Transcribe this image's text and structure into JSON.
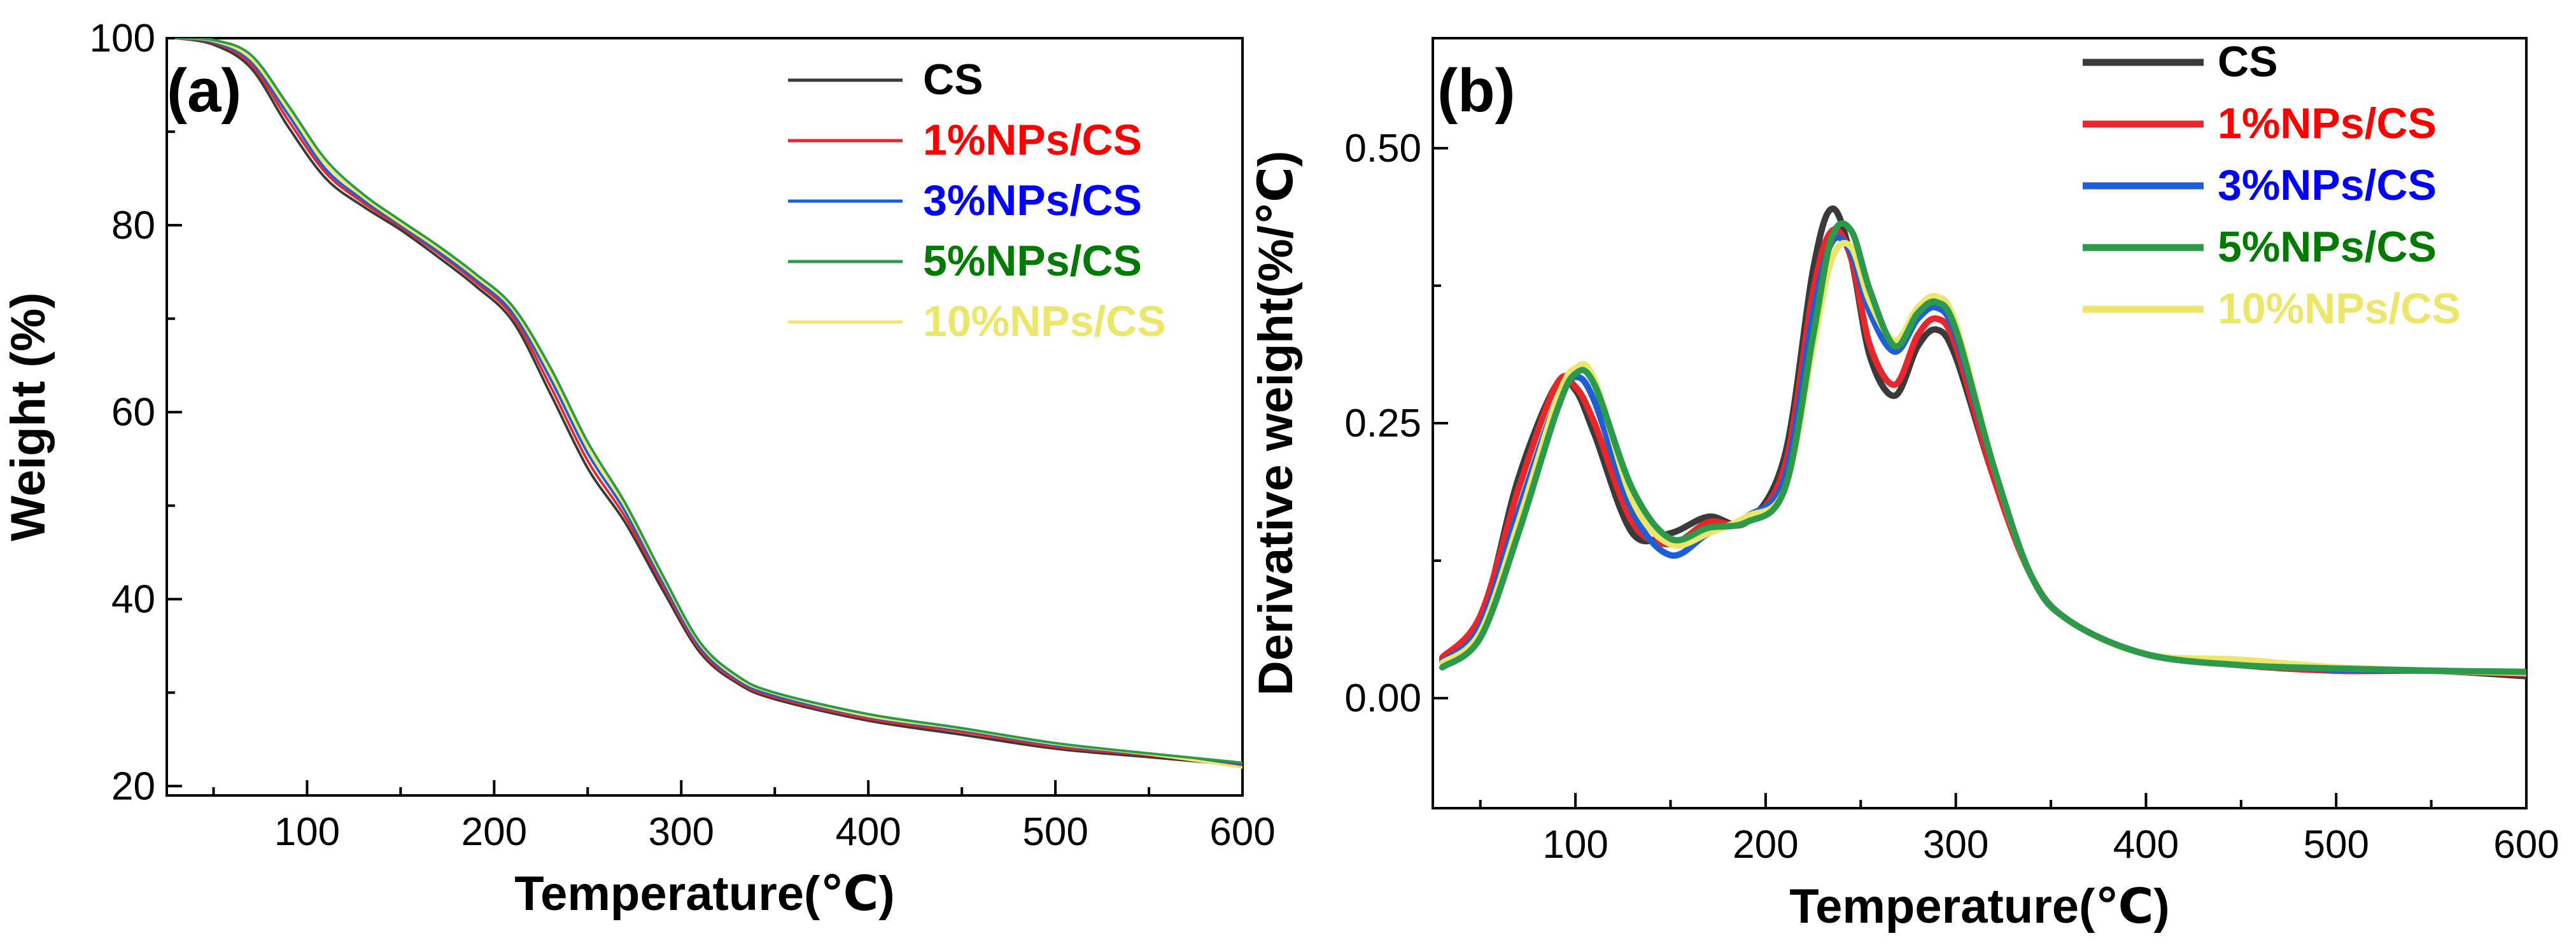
{
  "figure": {
    "colors": {
      "CS": "#3a3a3a",
      "1%NPs/CS": "#e8262b",
      "3%NPs/CS": "#1f5fd6",
      "5%NPs/CS": "#2b9a4a",
      "10%NPs/CS": "#ece66a"
    },
    "legend_text_colors": {
      "CS": "#000000",
      "1%NPs/CS": "#ff0000",
      "3%NPs/CS": "#0000ff",
      "5%NPs/CS": "#007a00",
      "10%NPs/CS": "#ece66a"
    }
  },
  "chart_data": [
    {
      "panel_label": "(a)",
      "type": "line",
      "xlabel": "Temperature(℃)",
      "ylabel": "Weight  (%)",
      "xlim": [
        25,
        600
      ],
      "ylim": [
        19,
        100
      ],
      "xticks": [
        100,
        200,
        300,
        400,
        500,
        600
      ],
      "yticks": [
        20,
        40,
        60,
        80,
        100
      ],
      "legend_position": "top-right",
      "series": [
        {
          "name": "CS",
          "x": [
            30,
            50,
            70,
            90,
            110,
            130,
            150,
            170,
            190,
            210,
            230,
            250,
            270,
            290,
            310,
            330,
            350,
            400,
            450,
            500,
            550,
            600
          ],
          "y": [
            100,
            99.3,
            96.8,
            90.5,
            85.0,
            82.0,
            79.5,
            76.6,
            73.5,
            69.7,
            62.0,
            54.0,
            48.2,
            41.0,
            34.3,
            31.0,
            29.3,
            27.0,
            25.5,
            24.0,
            23.1,
            22.2
          ]
        },
        {
          "name": "1%NPs/CS",
          "x": [
            30,
            50,
            70,
            90,
            110,
            130,
            150,
            170,
            190,
            210,
            230,
            250,
            270,
            290,
            310,
            330,
            350,
            400,
            450,
            500,
            550,
            600
          ],
          "y": [
            100,
            99.5,
            97.2,
            91.2,
            85.6,
            82.4,
            79.8,
            77.0,
            73.9,
            70.2,
            62.8,
            54.8,
            48.8,
            41.5,
            34.6,
            31.2,
            29.5,
            27.2,
            25.8,
            24.2,
            23.3,
            22.3
          ]
        },
        {
          "name": "3%NPs/CS",
          "x": [
            30,
            50,
            70,
            90,
            110,
            130,
            150,
            170,
            190,
            210,
            230,
            250,
            270,
            290,
            310,
            330,
            350,
            400,
            450,
            500,
            550,
            600
          ],
          "y": [
            100,
            99.6,
            97.5,
            91.8,
            86.0,
            82.7,
            80.0,
            77.2,
            74.2,
            70.6,
            63.6,
            55.6,
            49.4,
            41.9,
            34.9,
            31.4,
            29.7,
            27.4,
            26.0,
            24.4,
            23.4,
            22.4
          ]
        },
        {
          "name": "5%NPs/CS",
          "x": [
            30,
            50,
            70,
            90,
            110,
            130,
            150,
            170,
            190,
            210,
            230,
            250,
            270,
            290,
            310,
            330,
            350,
            400,
            450,
            500,
            550,
            600
          ],
          "y": [
            100,
            99.8,
            98.2,
            92.8,
            87.0,
            83.3,
            80.5,
            77.8,
            74.8,
            71.3,
            64.8,
            56.8,
            50.3,
            42.6,
            35.4,
            31.8,
            30.0,
            27.7,
            26.2,
            24.6,
            23.5,
            22.5
          ]
        },
        {
          "name": "10%NPs/CS",
          "x": [
            30,
            50,
            70,
            90,
            110,
            130,
            150,
            170,
            190,
            210,
            230,
            250,
            270,
            290,
            310,
            330,
            350,
            400,
            450,
            500,
            550,
            600
          ],
          "y": [
            100,
            99.7,
            97.8,
            92.3,
            86.5,
            83.0,
            80.2,
            77.5,
            74.5,
            71.0,
            64.2,
            56.2,
            49.9,
            42.3,
            35.2,
            31.6,
            29.9,
            27.5,
            26.1,
            24.5,
            23.4,
            22.0
          ]
        }
      ]
    },
    {
      "panel_label": "(b)",
      "type": "line",
      "xlabel": "Temperature(℃)",
      "ylabel": "Derivative weight(%/℃)",
      "xlim": [
        25,
        600
      ],
      "ylim": [
        -0.1,
        0.6
      ],
      "xticks": [
        100,
        200,
        300,
        400,
        500,
        600
      ],
      "yticks": [
        0.0,
        0.25,
        0.5
      ],
      "ytick_labels": [
        "0.00",
        "0.25",
        "0.50"
      ],
      "legend_position": "top-right",
      "series": [
        {
          "name": "CS",
          "x": [
            30,
            50,
            70,
            90,
            100,
            110,
            130,
            150,
            170,
            190,
            210,
            225,
            235,
            245,
            255,
            268,
            280,
            290,
            300,
            320,
            340,
            360,
            400,
            450,
            500,
            550,
            600
          ],
          "y": [
            0.035,
            0.07,
            0.2,
            0.285,
            0.28,
            0.24,
            0.15,
            0.15,
            0.165,
            0.16,
            0.22,
            0.39,
            0.445,
            0.4,
            0.31,
            0.275,
            0.32,
            0.335,
            0.31,
            0.2,
            0.11,
            0.07,
            0.04,
            0.03,
            0.025,
            0.025,
            0.02
          ]
        },
        {
          "name": "1%NPs/CS",
          "x": [
            30,
            50,
            70,
            90,
            100,
            110,
            130,
            150,
            170,
            190,
            210,
            225,
            235,
            245,
            255,
            268,
            280,
            290,
            300,
            320,
            340,
            360,
            400,
            450,
            500,
            550,
            600
          ],
          "y": [
            0.037,
            0.075,
            0.19,
            0.285,
            0.283,
            0.25,
            0.16,
            0.14,
            0.16,
            0.16,
            0.21,
            0.37,
            0.425,
            0.4,
            0.32,
            0.285,
            0.33,
            0.345,
            0.32,
            0.2,
            0.11,
            0.07,
            0.04,
            0.03,
            0.025,
            0.025,
            0.022
          ]
        },
        {
          "name": "3%NPs/CS",
          "x": [
            30,
            50,
            70,
            90,
            100,
            110,
            130,
            150,
            170,
            190,
            210,
            225,
            235,
            245,
            255,
            268,
            280,
            290,
            300,
            320,
            340,
            360,
            400,
            450,
            500,
            550,
            600
          ],
          "y": [
            0.033,
            0.065,
            0.17,
            0.27,
            0.292,
            0.27,
            0.17,
            0.13,
            0.15,
            0.165,
            0.2,
            0.35,
            0.415,
            0.405,
            0.35,
            0.315,
            0.345,
            0.355,
            0.33,
            0.21,
            0.11,
            0.07,
            0.04,
            0.032,
            0.026,
            0.025,
            0.023
          ]
        },
        {
          "name": "5%NPs/CS",
          "x": [
            30,
            50,
            70,
            90,
            100,
            110,
            130,
            150,
            170,
            190,
            210,
            225,
            235,
            245,
            255,
            268,
            280,
            290,
            300,
            320,
            340,
            360,
            400,
            450,
            500,
            550,
            600
          ],
          "y": [
            0.028,
            0.055,
            0.15,
            0.26,
            0.295,
            0.285,
            0.19,
            0.145,
            0.155,
            0.16,
            0.19,
            0.33,
            0.42,
            0.425,
            0.37,
            0.32,
            0.35,
            0.36,
            0.335,
            0.21,
            0.11,
            0.07,
            0.04,
            0.03,
            0.027,
            0.025,
            0.024
          ]
        },
        {
          "name": "10%NPs/CS",
          "x": [
            30,
            50,
            70,
            90,
            100,
            110,
            130,
            150,
            170,
            190,
            210,
            225,
            235,
            245,
            255,
            268,
            280,
            290,
            300,
            320,
            340,
            360,
            400,
            450,
            500,
            550,
            600
          ],
          "y": [
            0.032,
            0.06,
            0.16,
            0.27,
            0.3,
            0.29,
            0.18,
            0.14,
            0.15,
            0.165,
            0.19,
            0.32,
            0.4,
            0.41,
            0.36,
            0.325,
            0.355,
            0.365,
            0.34,
            0.21,
            0.11,
            0.07,
            0.04,
            0.035,
            0.028,
            0.025,
            0.023
          ]
        }
      ]
    }
  ]
}
